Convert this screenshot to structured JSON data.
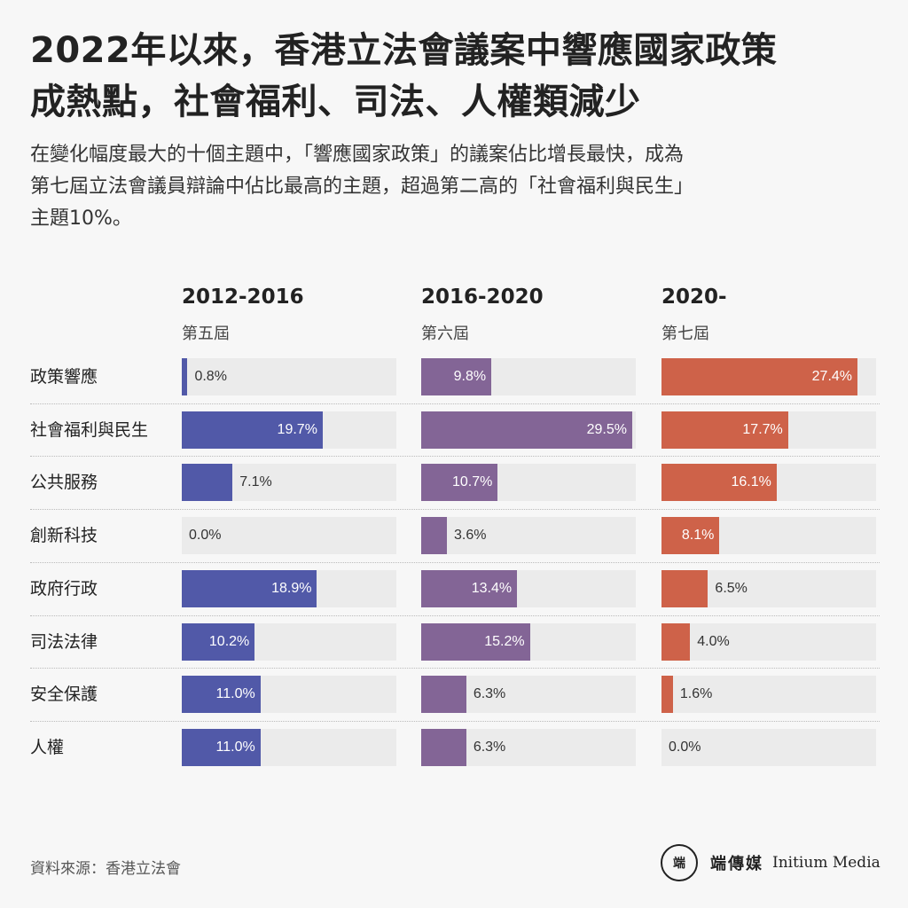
{
  "title_line1": "2022年以來，香港立法會議案中響應國家政策",
  "title_line2": "成熱點，社會福利、司法、人權類減少",
  "subtitle_line1": "在變化幅度最大的十個主題中，「響應國家政策」的議案佔比增長最快，成為",
  "subtitle_line2": "第七屆立法會議員辯論中佔比最高的主題，超過第二高的「社會福利與民生」",
  "subtitle_line3": "主題10%。",
  "source": "資料來源：香港立法會",
  "brand": {
    "mark": "端",
    "name_cn": "端傳媒",
    "name_en": "Initium Media"
  },
  "chart_data": {
    "type": "bar",
    "orientation": "horizontal",
    "unit": "%",
    "xlim": [
      0,
      30
    ],
    "categories": [
      "政策響應",
      "社會福利與民生",
      "公共服務",
      "創新科技",
      "政府行政",
      "司法法律",
      "安全保護",
      "人權"
    ],
    "series": [
      {
        "name": "2012-2016",
        "term": "第五屆",
        "color": "#5159a8",
        "values": [
          0.8,
          19.7,
          7.1,
          0.0,
          18.9,
          10.2,
          11.0,
          11.0
        ]
      },
      {
        "name": "2016-2020",
        "term": "第六屆",
        "color": "#836596",
        "values": [
          9.8,
          29.5,
          10.7,
          3.6,
          13.4,
          15.2,
          6.3,
          6.3
        ]
      },
      {
        "name": "2020-",
        "term": "第七屆",
        "color": "#ce6249",
        "values": [
          27.4,
          17.7,
          16.1,
          8.1,
          6.5,
          4.0,
          1.6,
          0.0
        ]
      }
    ]
  }
}
